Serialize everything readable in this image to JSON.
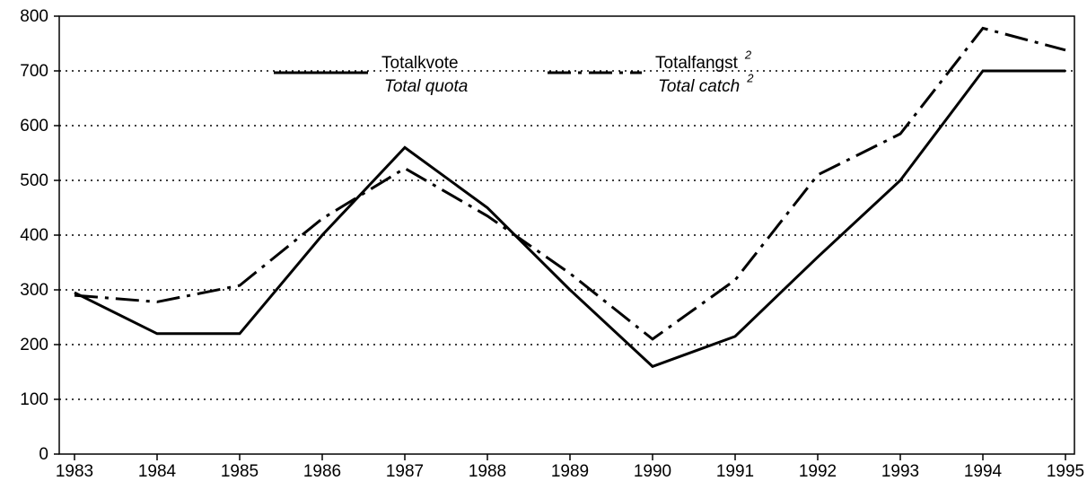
{
  "chart_data": {
    "type": "line",
    "x": [
      1983,
      1984,
      1985,
      1986,
      1987,
      1988,
      1989,
      1990,
      1991,
      1992,
      1993,
      1994,
      1995
    ],
    "xlim": [
      1983,
      1995
    ],
    "xticks": [
      1983,
      1984,
      1985,
      1986,
      1987,
      1988,
      1989,
      1990,
      1991,
      1992,
      1993,
      1994,
      1995
    ],
    "ylim": [
      0,
      800
    ],
    "yticks": [
      0,
      100,
      200,
      300,
      400,
      500,
      600,
      700,
      800
    ],
    "grid": true,
    "series": [
      {
        "name": "Totalkvote",
        "name_en": "Total quota",
        "color": "#000000",
        "dash": "solid",
        "values": [
          295,
          220,
          220,
          400,
          560,
          450,
          300,
          160,
          215,
          360,
          500,
          700,
          700
        ]
      },
      {
        "name": "Totalfangst",
        "name_en": "Total catch",
        "footnote": "2",
        "color": "#000000",
        "dash": "dashdot",
        "values": [
          290,
          278,
          308,
          430,
          522,
          435,
          330,
          210,
          318,
          510,
          585,
          778,
          738
        ]
      }
    ]
  }
}
